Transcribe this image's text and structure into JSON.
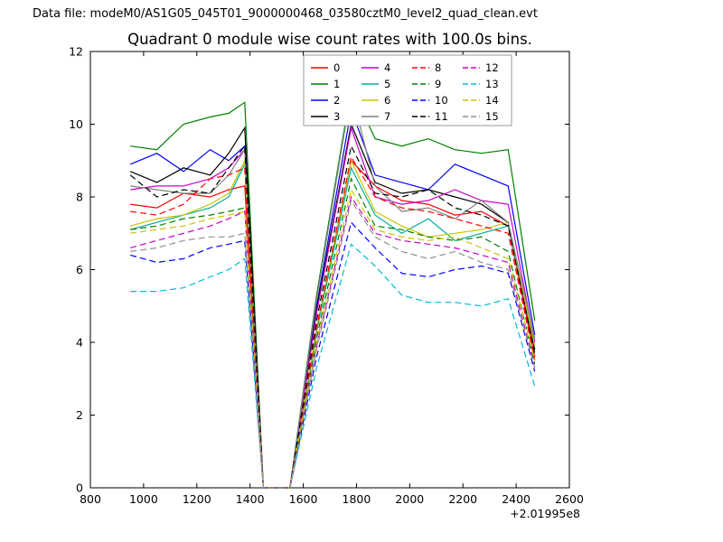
{
  "header": {
    "data_file_label": "Data file: modeM0/AS1G05_045T01_9000000468_03580cztM0_level2_quad_clean.evt"
  },
  "chart_data": {
    "type": "line",
    "title": "Quadrant 0 module wise count rates with 100.0s bins.",
    "xlabel": "",
    "ylabel": "",
    "x_offset_label": "+2.01995e8",
    "xlim": [
      800,
      2600
    ],
    "ylim": [
      0,
      12
    ],
    "xticks": [
      800,
      1000,
      1200,
      1400,
      1600,
      1800,
      2000,
      2200,
      2400,
      2600
    ],
    "yticks": [
      0,
      2,
      4,
      6,
      8,
      10,
      12
    ],
    "grid": false,
    "legend_position": "upper center",
    "x": [
      950,
      1050,
      1150,
      1250,
      1320,
      1380,
      1450,
      1550,
      1650,
      1780,
      1870,
      1970,
      2070,
      2170,
      2270,
      2370,
      2470
    ],
    "series": [
      {
        "name": "0",
        "color": "#ff0000",
        "dash": false,
        "values": [
          7.8,
          7.7,
          8.1,
          8.0,
          8.2,
          8.3,
          0,
          0,
          4.3,
          9.0,
          8.3,
          7.9,
          7.8,
          7.5,
          7.6,
          7.2,
          3.6
        ]
      },
      {
        "name": "1",
        "color": "#007f00",
        "dash": false,
        "values": [
          9.4,
          9.3,
          10.0,
          10.2,
          10.3,
          10.6,
          0,
          0,
          5.3,
          11.0,
          9.6,
          9.4,
          9.6,
          9.3,
          9.2,
          9.3,
          4.6
        ]
      },
      {
        "name": "2",
        "color": "#0000ff",
        "dash": false,
        "values": [
          8.9,
          9.2,
          8.7,
          9.3,
          9.0,
          9.4,
          0,
          0,
          5.0,
          10.4,
          8.6,
          8.4,
          8.2,
          8.9,
          8.6,
          8.3,
          4.2
        ]
      },
      {
        "name": "3",
        "color": "#000000",
        "dash": false,
        "values": [
          8.7,
          8.4,
          8.8,
          8.6,
          9.2,
          9.9,
          0,
          0,
          4.9,
          10.0,
          8.4,
          8.1,
          8.2,
          8.0,
          7.8,
          7.3,
          3.8
        ]
      },
      {
        "name": "4",
        "color": "#cc00cc",
        "dash": false,
        "values": [
          8.2,
          8.3,
          8.3,
          8.5,
          8.8,
          9.3,
          0,
          0,
          4.8,
          9.9,
          8.0,
          7.8,
          7.9,
          8.2,
          7.9,
          7.8,
          4.0
        ]
      },
      {
        "name": "5",
        "color": "#00af9a",
        "dash": false,
        "values": [
          7.1,
          7.3,
          7.5,
          7.7,
          8.0,
          8.9,
          0,
          0,
          4.3,
          8.8,
          7.5,
          7.0,
          7.4,
          6.8,
          7.0,
          7.2,
          3.9
        ]
      },
      {
        "name": "6",
        "color": "#c9c400",
        "dash": false,
        "values": [
          7.2,
          7.4,
          7.5,
          7.8,
          8.1,
          9.0,
          0,
          0,
          4.4,
          9.0,
          7.6,
          7.2,
          6.9,
          7.0,
          7.1,
          7.3,
          3.9
        ]
      },
      {
        "name": "7",
        "color": "#808080",
        "dash": false,
        "values": [
          8.3,
          8.2,
          8.1,
          8.1,
          8.6,
          9.3,
          0,
          0,
          5.2,
          10.9,
          8.3,
          7.6,
          7.7,
          7.4,
          7.9,
          7.3,
          4.1
        ]
      },
      {
        "name": "8",
        "color": "#ff0000",
        "dash": true,
        "values": [
          7.6,
          7.5,
          7.8,
          8.5,
          8.6,
          8.8,
          0,
          0,
          4.4,
          9.1,
          8.0,
          7.7,
          7.6,
          7.4,
          7.2,
          7.0,
          3.5
        ]
      },
      {
        "name": "9",
        "color": "#007f00",
        "dash": true,
        "values": [
          7.1,
          7.2,
          7.4,
          7.5,
          7.6,
          7.7,
          0,
          0,
          4.1,
          8.5,
          7.2,
          7.1,
          6.9,
          6.8,
          6.9,
          6.5,
          3.4
        ]
      },
      {
        "name": "10",
        "color": "#0000ff",
        "dash": true,
        "values": [
          6.4,
          6.2,
          6.3,
          6.6,
          6.7,
          6.8,
          0,
          0,
          3.6,
          7.3,
          6.6,
          5.9,
          5.8,
          6.0,
          6.1,
          5.9,
          3.2
        ]
      },
      {
        "name": "11",
        "color": "#000000",
        "dash": true,
        "values": [
          8.6,
          8.0,
          8.2,
          8.1,
          8.8,
          9.4,
          0,
          0,
          4.6,
          9.4,
          8.1,
          8.0,
          8.2,
          7.7,
          7.5,
          7.2,
          3.7
        ]
      },
      {
        "name": "12",
        "color": "#cc00cc",
        "dash": true,
        "values": [
          6.6,
          6.8,
          7.0,
          7.2,
          7.4,
          7.6,
          0,
          0,
          3.9,
          8.0,
          7.0,
          6.8,
          6.7,
          6.6,
          6.4,
          6.2,
          3.3
        ]
      },
      {
        "name": "13",
        "color": "#00bcd4",
        "dash": true,
        "values": [
          5.4,
          5.4,
          5.5,
          5.8,
          6.0,
          6.3,
          0,
          0,
          3.3,
          6.7,
          6.1,
          5.3,
          5.1,
          5.1,
          5.0,
          5.2,
          2.8
        ]
      },
      {
        "name": "14",
        "color": "#c9c400",
        "dash": true,
        "values": [
          7.0,
          7.1,
          7.2,
          7.4,
          7.5,
          7.6,
          0,
          0,
          4.0,
          8.2,
          7.1,
          6.9,
          6.8,
          6.9,
          6.6,
          6.3,
          3.5
        ]
      },
      {
        "name": "15",
        "color": "#909090",
        "dash": true,
        "values": [
          6.5,
          6.6,
          6.8,
          6.9,
          6.9,
          7.0,
          0,
          0,
          3.8,
          7.9,
          6.9,
          6.5,
          6.3,
          6.5,
          6.2,
          6.0,
          3.3
        ]
      }
    ]
  }
}
